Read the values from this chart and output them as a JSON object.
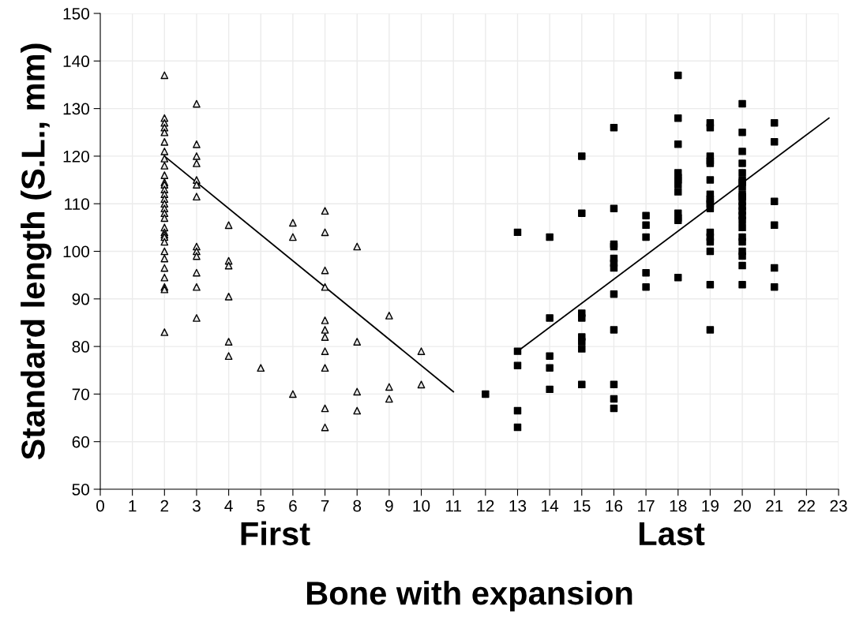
{
  "chart_data": {
    "type": "scatter",
    "xlabel": "Bone with expansion",
    "ylabel": "Standard length (S.L., mm)",
    "annotations": [
      "First",
      "Last"
    ],
    "xlim": [
      0,
      23
    ],
    "xticks": [
      0,
      1,
      2,
      3,
      4,
      5,
      6,
      7,
      8,
      9,
      10,
      11,
      12,
      13,
      14,
      15,
      16,
      17,
      18,
      19,
      20,
      21,
      22,
      23
    ],
    "ylim": [
      50,
      150
    ],
    "yticks": [
      50,
      60,
      70,
      80,
      90,
      100,
      110,
      120,
      130,
      140,
      150
    ],
    "grid": true,
    "legend": false,
    "series": [
      {
        "marker": "triangle",
        "color": "#000000",
        "x": [
          2,
          2,
          2,
          2,
          2,
          2,
          2,
          2,
          2,
          2,
          2,
          2,
          2,
          2,
          2,
          2,
          2,
          2,
          2,
          2,
          2,
          2,
          2,
          2,
          2,
          2,
          2,
          2,
          2,
          2,
          2,
          3,
          3,
          3,
          3,
          3,
          3,
          3,
          3,
          3,
          3,
          3,
          3,
          3,
          4,
          4,
          4,
          4,
          4,
          4,
          5,
          6,
          6,
          6,
          7,
          7,
          7,
          7,
          7,
          7,
          7,
          7,
          7,
          7,
          7,
          8,
          8,
          8,
          8,
          9,
          9,
          9,
          10,
          10
        ],
        "values": [
          137,
          128,
          127,
          126,
          125,
          123,
          121,
          119.5,
          118,
          116,
          114.5,
          114,
          113,
          112,
          111,
          110,
          109,
          108,
          107,
          105,
          104,
          103.5,
          103,
          102,
          100,
          98.5,
          96.5,
          94.5,
          92.5,
          92,
          83,
          131,
          122.5,
          120,
          118.5,
          115,
          114,
          111.5,
          101,
          100,
          99,
          95.5,
          92.5,
          86,
          105.5,
          98,
          97,
          90.5,
          81,
          78,
          75.5,
          106,
          103,
          70,
          108.5,
          104,
          96,
          92.5,
          85.5,
          83.5,
          82,
          79,
          75.5,
          67,
          63,
          101,
          81,
          70.5,
          66.5,
          86.5,
          71.5,
          69,
          79,
          72
        ]
      },
      {
        "marker": "square",
        "color": "#000000",
        "x": [
          12,
          13,
          13,
          13,
          13,
          13,
          14,
          14,
          14,
          14,
          14,
          15,
          15,
          15,
          15,
          15,
          15,
          15,
          15,
          16,
          16,
          16,
          16,
          16,
          16,
          16,
          16,
          16,
          16,
          16,
          16,
          17,
          17,
          17,
          17,
          17,
          18,
          18,
          18,
          18,
          18,
          18,
          18,
          18,
          18,
          18,
          18,
          18,
          19,
          19,
          19,
          19,
          19,
          19,
          19,
          19,
          19,
          19,
          19,
          19,
          19,
          19,
          19,
          19,
          19,
          20,
          20,
          20,
          20,
          20,
          20,
          20,
          20,
          20,
          20,
          20,
          20,
          20,
          20,
          20,
          20,
          20,
          20,
          20,
          20,
          20,
          20,
          21,
          21,
          21,
          21,
          21,
          21
        ],
        "values": [
          70,
          104,
          79,
          76,
          66.5,
          63,
          103,
          86,
          78,
          75.5,
          71,
          120,
          108,
          87,
          86,
          82,
          81,
          79.5,
          72,
          126,
          109,
          101.5,
          101,
          98.5,
          97.5,
          96.5,
          91,
          83.5,
          72,
          69,
          67,
          107.5,
          105.5,
          103,
          95.5,
          92.5,
          137,
          128,
          122.5,
          116.5,
          115.5,
          115,
          114,
          112.5,
          108,
          107,
          106.5,
          94.5,
          127,
          126,
          120,
          119,
          118.5,
          115,
          112,
          111,
          110.5,
          110,
          109,
          104,
          103,
          102,
          100,
          93,
          83.5,
          131,
          125,
          121,
          118.5,
          116.5,
          115,
          114.5,
          113.5,
          112,
          111.5,
          110.5,
          109.5,
          108.5,
          107.5,
          106.5,
          105,
          103,
          102,
          100,
          99,
          97,
          93,
          127,
          123,
          110.5,
          105.5,
          96.5,
          92.5
        ]
      },
      {
        "type": "line",
        "color": "#000000",
        "x": [
          2,
          11
        ],
        "values": [
          120,
          70.5
        ]
      },
      {
        "type": "line",
        "color": "#000000",
        "x": [
          13,
          22.7
        ],
        "values": [
          79,
          128
        ]
      }
    ]
  }
}
